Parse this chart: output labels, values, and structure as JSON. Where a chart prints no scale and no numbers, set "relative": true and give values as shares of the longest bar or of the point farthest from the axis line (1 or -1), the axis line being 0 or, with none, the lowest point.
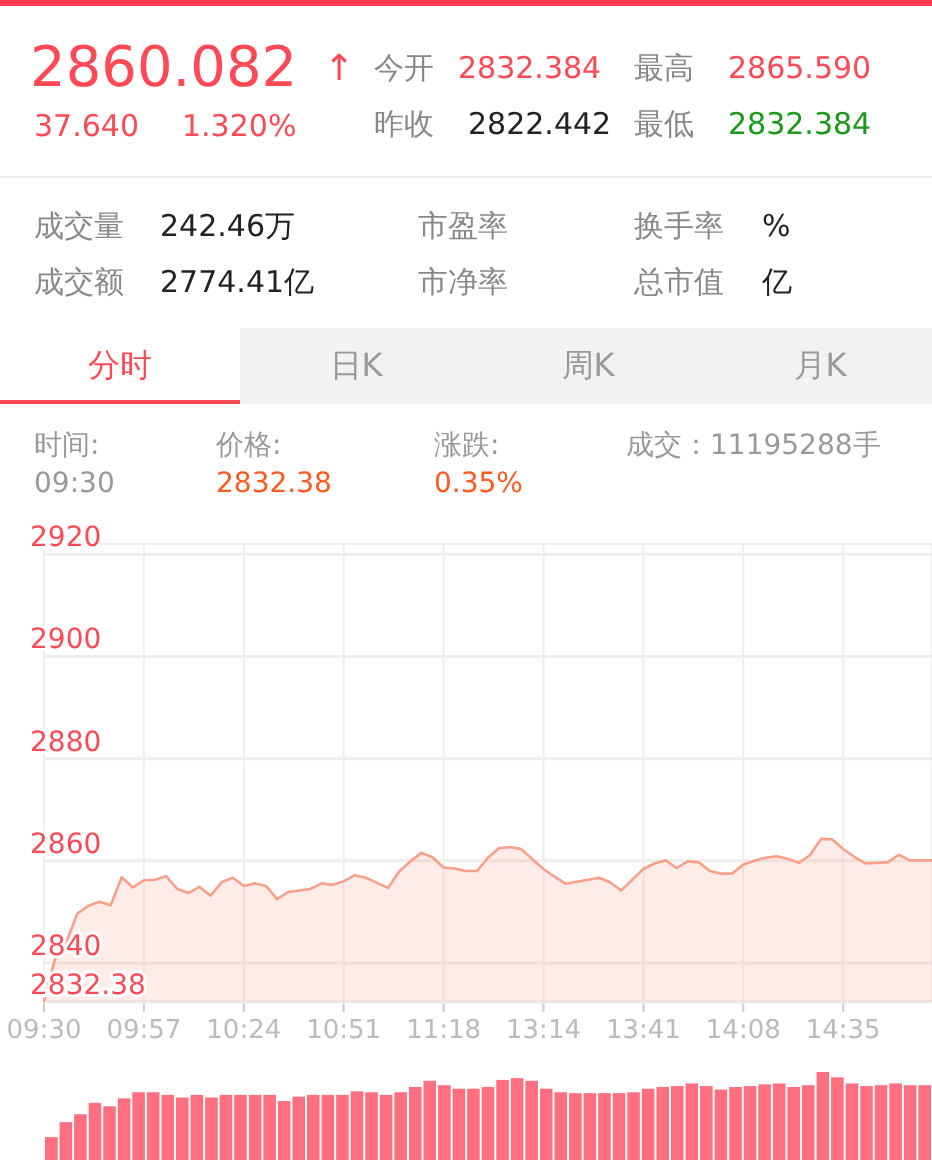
{
  "chart_data": [
    {
      "type": "other",
      "annotations": [
        "2860.082",
        "↑",
        "37.640",
        "1.320%",
        "今开",
        "2832.384",
        "最高",
        "2865.590",
        "昨收",
        "2822.442",
        "最低",
        "2832.384",
        "成交量",
        "242.46万",
        "市盈率",
        "换手率",
        "%",
        "成交额",
        "2774.41亿",
        "市净率",
        "总市值",
        "亿",
        "分时",
        "日K",
        "周K",
        "月K",
        "时间:",
        "09:30",
        "价格:",
        "2832.38",
        "涨跌:",
        "0.35%",
        "成交：11195288手"
      ],
      "colors": [
        "#ff4a55",
        "#ff4a55",
        "#ff4a55",
        "#ff4a55",
        "#888888",
        "#ff4a55",
        "#888888",
        "#ff4a55",
        "#888888",
        "#222222",
        "#888888",
        "#1a9a1a",
        "#888888",
        "#222222",
        "#888888",
        "#888888",
        "#222222",
        "#888888",
        "#222222",
        "#888888",
        "#888888",
        "#222222",
        "#ff4a55",
        "#999999",
        "#999999",
        "#999999",
        "#999999",
        "#999999",
        "#999999",
        "#ff5a1f",
        "#999999",
        "#ff5a1f",
        "#999999"
      ]
    },
    {
      "type": "area",
      "categories": [
        "09:30",
        null,
        null,
        null,
        null,
        null,
        null,
        null,
        null,
        "09:57",
        null,
        null,
        null,
        null,
        null,
        null,
        null,
        null,
        "10:24",
        null,
        null,
        null,
        null,
        null,
        null,
        null,
        null,
        "10:51",
        null,
        null,
        null,
        null,
        null,
        null,
        null,
        null,
        "11:18",
        null,
        null,
        null,
        null,
        null,
        null,
        null,
        null,
        "13:14",
        null,
        null,
        null,
        null,
        null,
        null,
        null,
        null,
        "13:41",
        null,
        null,
        null,
        null,
        null,
        null,
        null,
        null,
        "14:08",
        null,
        null,
        null,
        null,
        null,
        null,
        null,
        null,
        "14:35",
        null,
        null,
        null,
        null,
        null,
        null,
        null,
        null
      ],
      "series": [
        {
          "color": "#f8a08a",
          "values": [
            2832.4,
            2840.9,
            2844.0,
            2849.7,
            2851.2,
            2852.0,
            2851.3,
            2856.8,
            2854.8,
            2856.2,
            2856.3,
            2857.0,
            2854.5,
            2853.7,
            2854.9,
            2853.2,
            2855.8,
            2856.7,
            2855.1,
            2855.6,
            2855.1,
            2852.5,
            2853.9,
            2854.2,
            2854.5,
            2855.6,
            2855.3,
            2856.0,
            2857.2,
            2856.7,
            2855.7,
            2854.7,
            2857.9,
            2859.9,
            2861.6,
            2860.7,
            2858.7,
            2858.5,
            2858.0,
            2858.0,
            2860.6,
            2862.5,
            2862.7,
            2862.3,
            2860.3,
            2858.4,
            2856.9,
            2855.5,
            2855.9,
            2856.3,
            2856.7,
            2855.8,
            2854.2,
            2856.3,
            2858.4,
            2859.5,
            2860.1,
            2858.6,
            2859.9,
            2859.7,
            2858.0,
            2857.5,
            2857.5,
            2859.3,
            2860.0,
            2860.6,
            2860.9,
            2860.4,
            2859.6,
            2861.1,
            2864.3,
            2864.2,
            2862.3,
            2860.8,
            2859.5,
            2859.6,
            2859.7,
            2861.2,
            2860.1,
            2860.1,
            2860.1
          ]
        }
      ],
      "ylim": [
        2832.38,
        2922
      ],
      "yticks": [
        2832.38,
        2840,
        2860,
        2880,
        2900,
        2920
      ],
      "grid": true
    },
    {
      "type": "bar",
      "relative": true,
      "color": "#ff6f7f",
      "categories": [
        null,
        null,
        null,
        null,
        null,
        null,
        null,
        null,
        null,
        null,
        null,
        null,
        null,
        null,
        null,
        null,
        null,
        null,
        null,
        null,
        null,
        null,
        null,
        null,
        null,
        null,
        null,
        null,
        null,
        null,
        null,
        null,
        null,
        null,
        null,
        null,
        null,
        null,
        null,
        null,
        null,
        null,
        null,
        null,
        null,
        null,
        null,
        null,
        null,
        null,
        null,
        null,
        null,
        null,
        null,
        null,
        null,
        null,
        null,
        null,
        null
      ],
      "values": [
        0.26,
        0.43,
        0.52,
        0.65,
        0.61,
        0.7,
        0.77,
        0.77,
        0.74,
        0.71,
        0.74,
        0.71,
        0.74,
        0.74,
        0.74,
        0.74,
        0.67,
        0.72,
        0.74,
        0.74,
        0.74,
        0.78,
        0.77,
        0.74,
        0.77,
        0.83,
        0.9,
        0.85,
        0.81,
        0.81,
        0.83,
        0.91,
        0.93,
        0.9,
        0.81,
        0.77,
        0.76,
        0.76,
        0.76,
        0.76,
        0.77,
        0.81,
        0.83,
        0.84,
        0.87,
        0.84,
        0.8,
        0.83,
        0.84,
        0.86,
        0.87,
        0.83,
        0.85,
        1,
        0.94,
        0.87,
        0.84,
        0.85,
        0.87,
        0.85,
        0.85
      ]
    }
  ]
}
